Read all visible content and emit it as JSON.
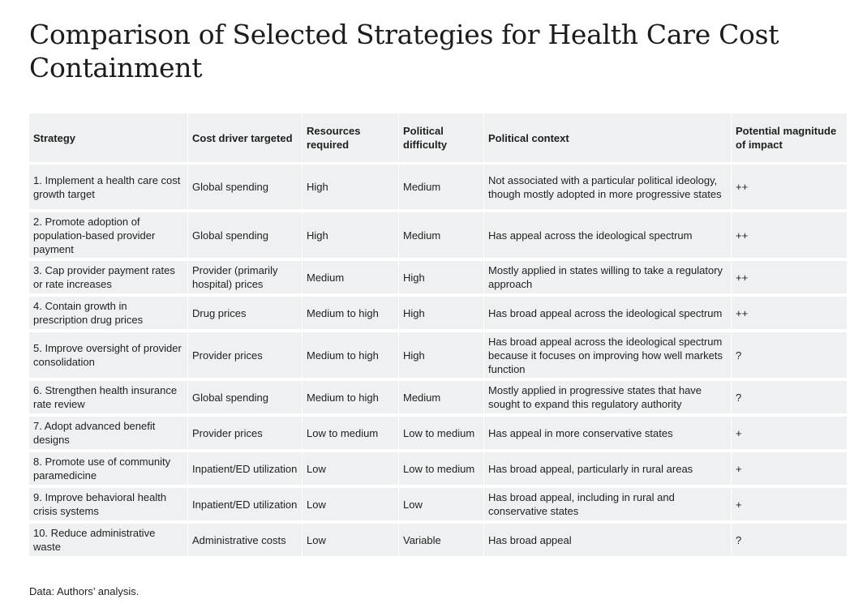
{
  "title": "Comparison of Selected Strategies for Health Care Cost Containment",
  "headers": {
    "strategy": "Strategy",
    "cost_driver": "Cost driver targeted",
    "resources": "Resources required",
    "difficulty": "Political difficulty",
    "context": "Political context",
    "impact": "Potential magnitude of impact"
  },
  "rows": [
    {
      "strategy": "1. Implement a health care cost growth target",
      "cost_driver": "Global spending",
      "resources": "High",
      "difficulty": "Medium",
      "context": "Not associated with a particular political ideology, though mostly adopted in more progressive states",
      "impact": "++"
    },
    {
      "strategy": "2. Promote adoption of population-based provider payment",
      "cost_driver": "Global spending",
      "resources": "High",
      "difficulty": "Medium",
      "context": "Has appeal across the ideological spectrum",
      "impact": "++"
    },
    {
      "strategy": "3. Cap provider payment rates or rate increases",
      "cost_driver": "Provider (primarily hospital) prices",
      "resources": "Medium",
      "difficulty": "High",
      "context": "Mostly applied in states willing to take a regulatory approach",
      "impact": "++"
    },
    {
      "strategy": "4. Contain growth in prescription drug prices",
      "cost_driver": "Drug prices",
      "resources": "Medium to high",
      "difficulty": "High",
      "context": "Has broad appeal across the ideological spectrum",
      "impact": "++"
    },
    {
      "strategy": "5. Improve oversight of provider consolidation",
      "cost_driver": "Provider prices",
      "resources": "Medium to high",
      "difficulty": "High",
      "context": "Has broad appeal across the ideological spectrum because it focuses on improving how well markets function",
      "impact": "?"
    },
    {
      "strategy": "6. Strengthen health insurance rate review",
      "cost_driver": "Global spending",
      "resources": "Medium to high",
      "difficulty": "Medium",
      "context": "Mostly applied in progressive states that have sought to expand this regulatory authority",
      "impact": "?"
    },
    {
      "strategy": "7. Adopt advanced benefit designs",
      "cost_driver": "Provider prices",
      "resources": "Low to medium",
      "difficulty": "Low to medium",
      "context": "Has appeal in more conservative states",
      "impact": "+"
    },
    {
      "strategy": "8. Promote use of community paramedicine",
      "cost_driver": "Inpatient/ED utilization",
      "resources": "Low",
      "difficulty": "Low to medium",
      "context": "Has broad appeal, particularly in rural areas",
      "impact": "+"
    },
    {
      "strategy": "9. Improve behavioral health crisis systems",
      "cost_driver": "Inpatient/ED utilization",
      "resources": "Low",
      "difficulty": "Low",
      "context": "Has broad appeal, including in rural and conservative states",
      "impact": "+"
    },
    {
      "strategy": "10. Reduce administrative waste",
      "cost_driver": "Administrative costs",
      "resources": "Low",
      "difficulty": "Variable",
      "context": "Has broad appeal",
      "impact": "?"
    }
  ],
  "source": "Data: Authors’ analysis."
}
